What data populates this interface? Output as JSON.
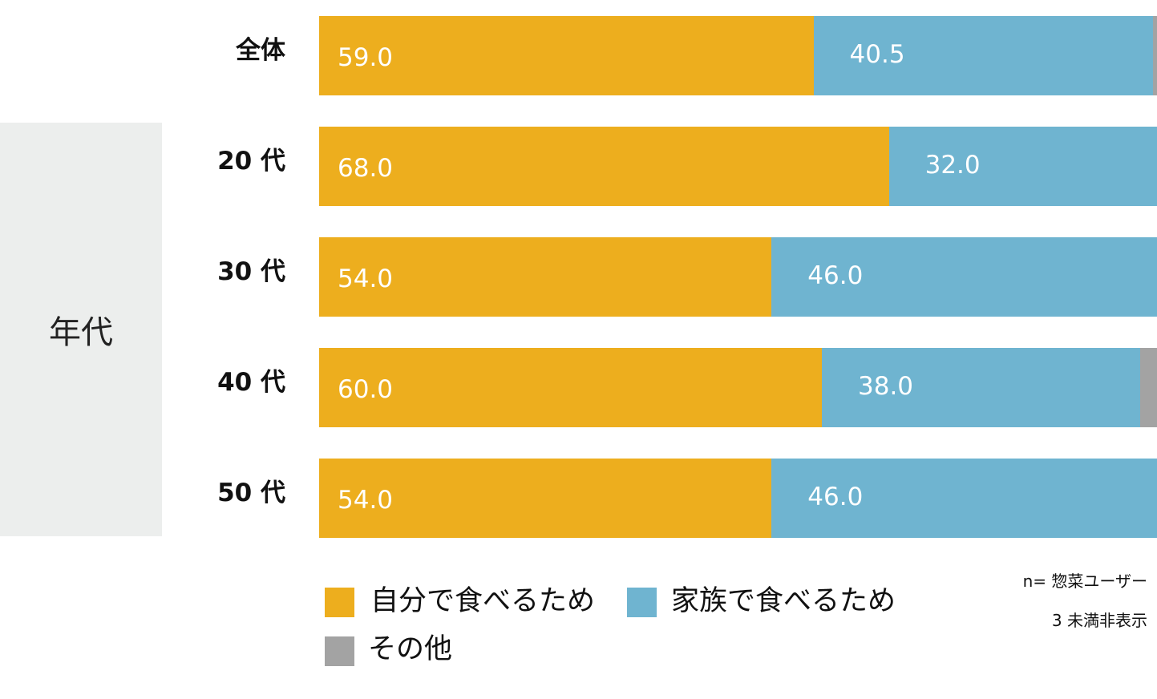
{
  "chart_data": {
    "type": "bar",
    "orientation": "horizontal",
    "stacked": true,
    "group_label": "年代",
    "categories": [
      "全体",
      "20 代",
      "30 代",
      "40 代",
      "50 代"
    ],
    "series": [
      {
        "name": "自分で食べるため",
        "color": "#edae1e",
        "values": [
          59.0,
          68.0,
          54.0,
          60.0,
          54.0
        ],
        "labels": [
          "59.0",
          "68.0",
          "54.0",
          "60.0",
          "54.0"
        ]
      },
      {
        "name": "家族で食べるため",
        "color": "#6fb4d0",
        "values": [
          40.5,
          32.0,
          46.0,
          38.0,
          46.0
        ],
        "labels": [
          "40.5",
          "32.0",
          "46.0",
          "38.0",
          "46.0"
        ]
      },
      {
        "name": "その他",
        "color": "#a3a3a3",
        "values": [
          0.5,
          0,
          0,
          2.0,
          0
        ],
        "labels": [
          "",
          "",
          "",
          "",
          ""
        ]
      }
    ],
    "xlim": [
      0,
      100
    ],
    "legend_position": "bottom",
    "notes": [
      "n= 惣菜ユーザー",
      "3 未満非表示"
    ]
  }
}
